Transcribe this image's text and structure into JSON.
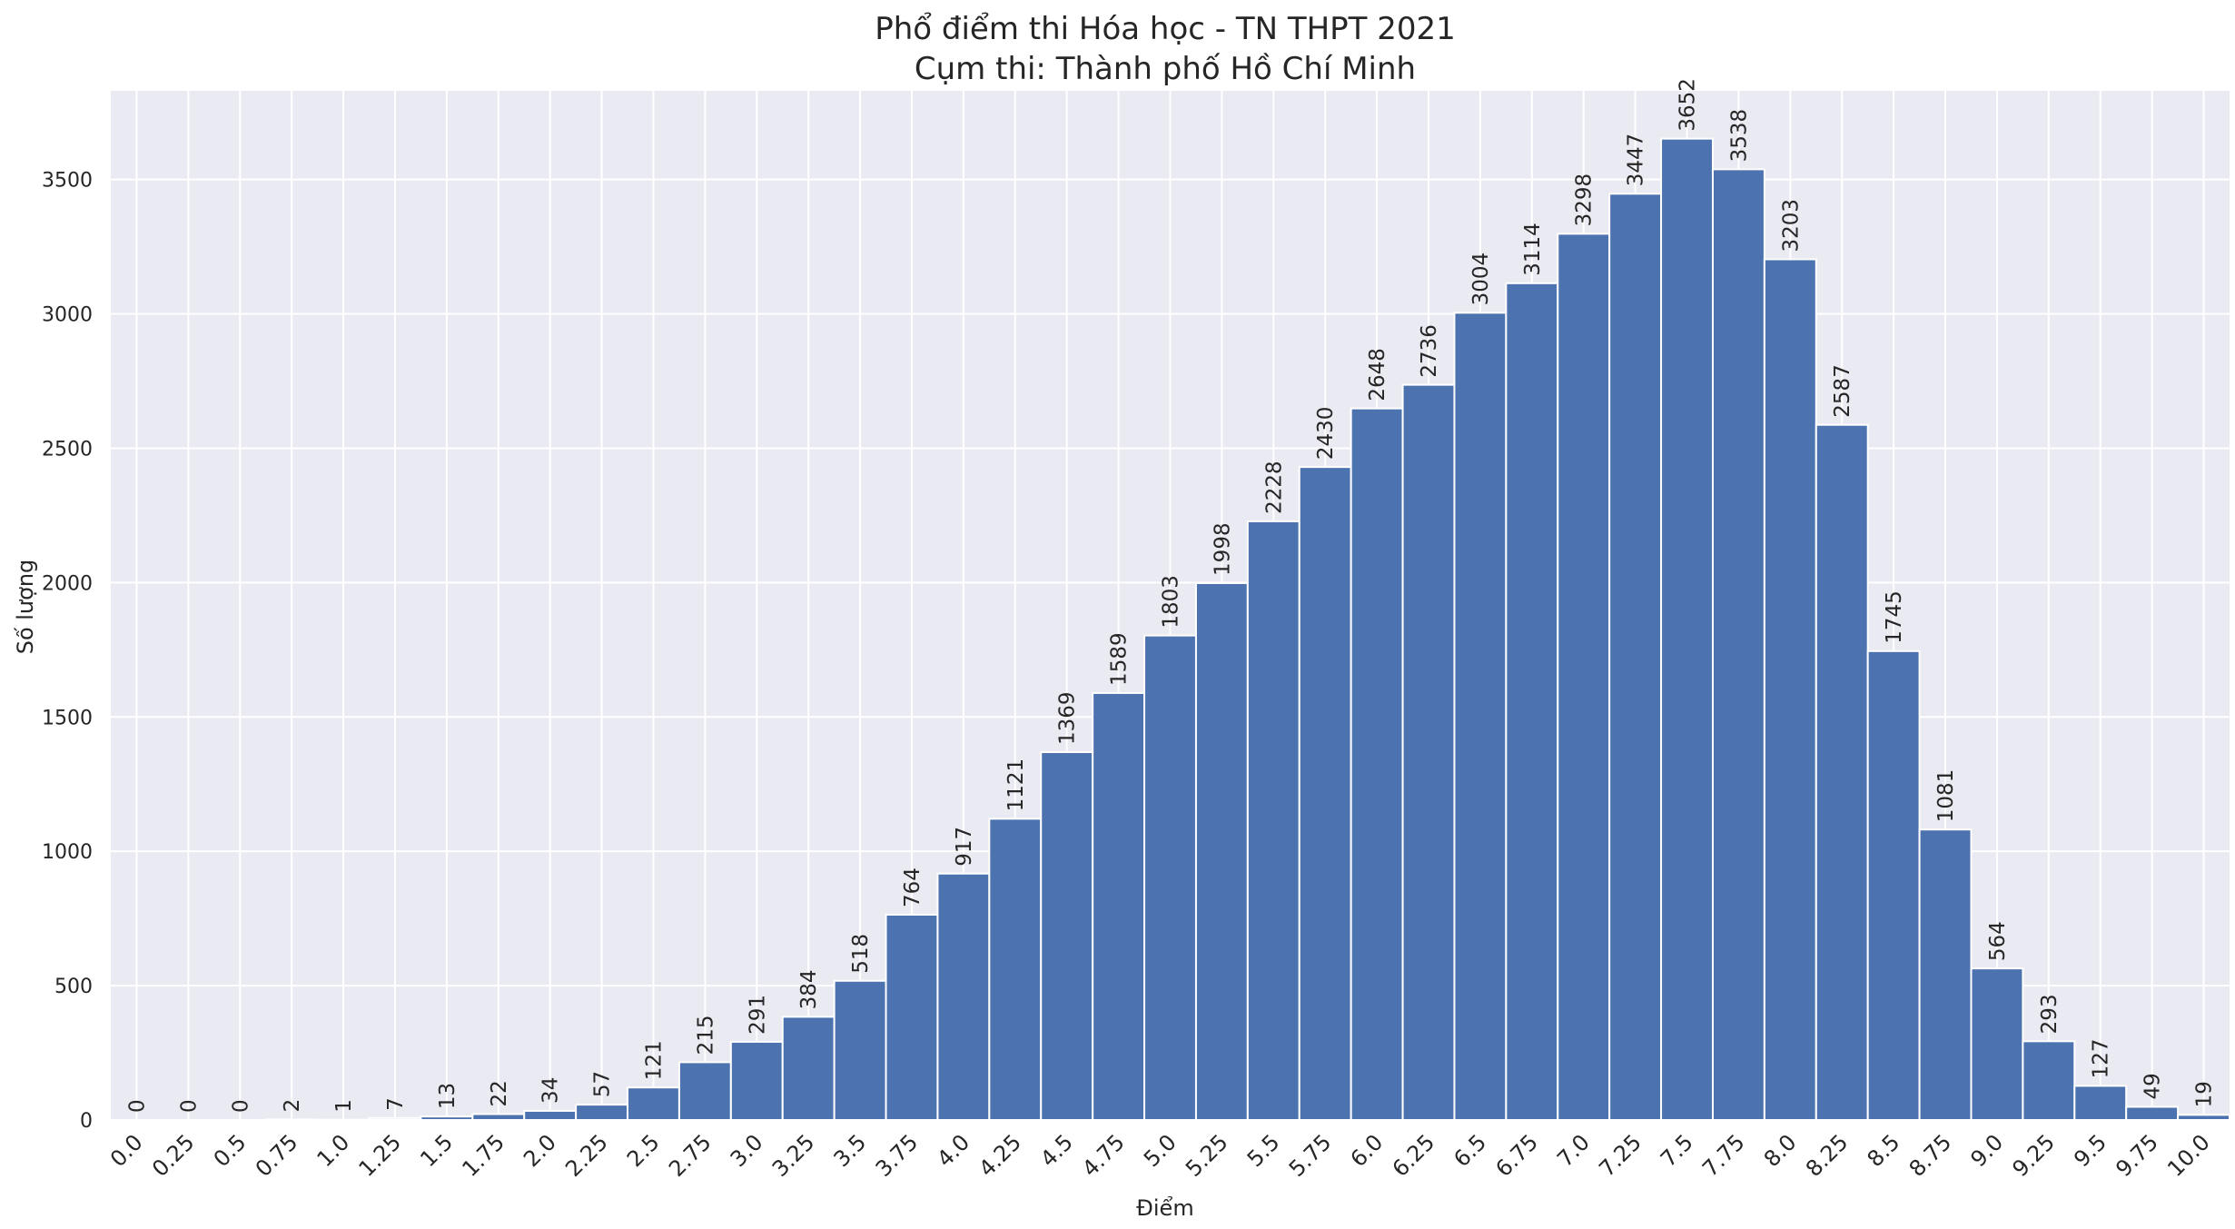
{
  "chart_data": {
    "type": "bar",
    "title": "Phổ điểm thi Hóa học - TN THPT 2021",
    "subtitle": "Cụm thi: Thành phố Hồ Chí Minh",
    "xlabel": "Điểm",
    "ylabel": "Số lượng",
    "ylim": [
      0,
      3830
    ],
    "yticks": [
      0,
      500,
      1000,
      1500,
      2000,
      2500,
      3000,
      3500
    ],
    "grid": true,
    "categories": [
      "0.0",
      "0.25",
      "0.5",
      "0.75",
      "1.0",
      "1.25",
      "1.5",
      "1.75",
      "2.0",
      "2.25",
      "2.5",
      "2.75",
      "3.0",
      "3.25",
      "3.5",
      "3.75",
      "4.0",
      "4.25",
      "4.5",
      "4.75",
      "5.0",
      "5.25",
      "5.5",
      "5.75",
      "6.0",
      "6.25",
      "6.5",
      "6.75",
      "7.0",
      "7.25",
      "7.5",
      "7.75",
      "8.0",
      "8.25",
      "8.5",
      "8.75",
      "9.0",
      "9.25",
      "9.5",
      "9.75",
      "10.0"
    ],
    "values": [
      0,
      0,
      0,
      2,
      1,
      7,
      13,
      22,
      34,
      57,
      121,
      215,
      291,
      384,
      518,
      764,
      917,
      1121,
      1369,
      1589,
      1803,
      1998,
      2228,
      2430,
      2648,
      2736,
      3004,
      3114,
      3298,
      3447,
      3652,
      3538,
      3203,
      2587,
      1745,
      1081,
      564,
      293,
      127,
      49,
      19
    ],
    "colors": {
      "bar": "#4c72b0",
      "background": "#eaeaf2",
      "grid": "#ffffff"
    }
  }
}
